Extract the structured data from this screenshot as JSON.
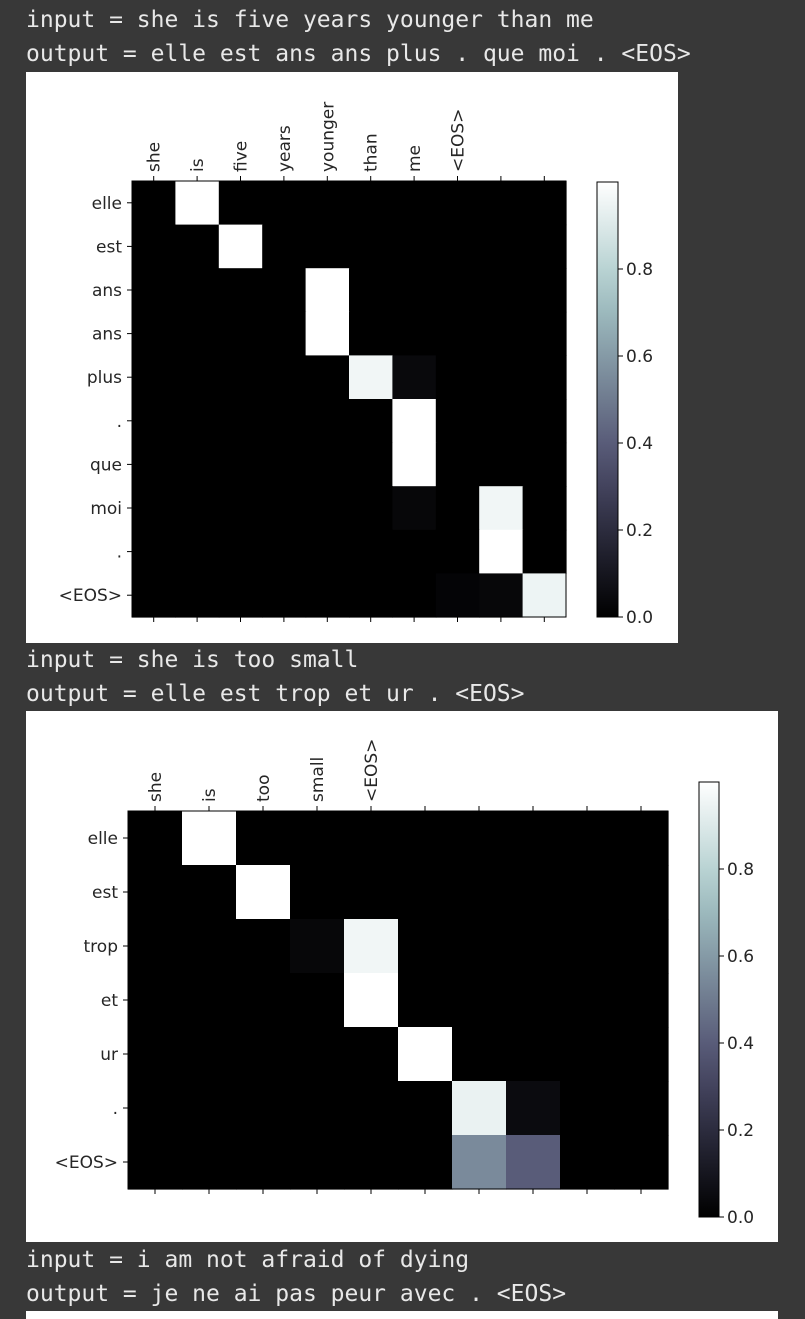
{
  "outputs": [
    {
      "input_line": "input = she is five years younger than me",
      "output_line": "output = elle est ans ans plus . que moi . <EOS>"
    },
    {
      "input_line": "input = she is too small",
      "output_line": "output = elle est trop et ur . <EOS>"
    },
    {
      "input_line": "input = i am not afraid of dying",
      "output_line": "output = je ne ai pas peur avec . <EOS>"
    }
  ],
  "chart_data": [
    {
      "type": "heatmap",
      "colormap": "bone",
      "x_tick_labels": [
        "she",
        "is",
        "five",
        "years",
        "younger",
        "than",
        "me",
        "<EOS>",
        "",
        ""
      ],
      "y_tick_labels": [
        "elle",
        "est",
        "ans",
        "ans",
        "plus",
        ".",
        "que",
        "moi",
        ".",
        "<EOS>"
      ],
      "colorbar": {
        "ticks": [
          0.0,
          0.2,
          0.4,
          0.6,
          0.8
        ],
        "tick_labels": [
          "0.0",
          "0.2",
          "0.4",
          "0.6",
          "0.8"
        ],
        "vmin": 0,
        "vmax": 1
      },
      "values": [
        [
          0,
          1,
          0,
          0,
          0,
          0,
          0,
          0,
          0,
          0
        ],
        [
          0,
          0,
          1,
          0,
          0,
          0,
          0,
          0,
          0,
          0
        ],
        [
          0,
          0,
          0,
          0,
          1,
          0,
          0,
          0,
          0,
          0
        ],
        [
          0,
          0,
          0,
          0,
          1,
          0,
          0,
          0,
          0,
          0
        ],
        [
          0,
          0,
          0,
          0,
          0,
          0.96,
          0.04,
          0,
          0,
          0
        ],
        [
          0,
          0,
          0,
          0,
          0,
          0,
          1,
          0,
          0,
          0
        ],
        [
          0,
          0,
          0,
          0,
          0,
          0,
          1,
          0,
          0,
          0
        ],
        [
          0,
          0,
          0,
          0,
          0,
          0,
          0.03,
          0,
          0.96,
          0
        ],
        [
          0,
          0,
          0,
          0,
          0,
          0,
          0,
          0,
          1,
          0
        ],
        [
          0,
          0,
          0,
          0,
          0,
          0,
          0,
          0.02,
          0.03,
          0.95
        ]
      ]
    },
    {
      "type": "heatmap",
      "colormap": "bone",
      "x_tick_labels": [
        "she",
        "is",
        "too",
        "small",
        "<EOS>",
        "",
        "",
        "",
        "",
        ""
      ],
      "y_tick_labels": [
        "elle",
        "est",
        "trop",
        "et",
        "ur",
        ".",
        "<EOS>"
      ],
      "colorbar": {
        "ticks": [
          0.0,
          0.2,
          0.4,
          0.6,
          0.8
        ],
        "tick_labels": [
          "0.0",
          "0.2",
          "0.4",
          "0.6",
          "0.8"
        ],
        "vmin": 0,
        "vmax": 1
      },
      "values": [
        [
          0,
          1,
          0,
          0,
          0,
          0,
          0,
          0,
          0,
          0
        ],
        [
          0,
          0,
          1,
          0,
          0,
          0,
          0,
          0,
          0,
          0
        ],
        [
          0,
          0,
          0,
          0.03,
          0.96,
          0,
          0,
          0,
          0,
          0
        ],
        [
          0,
          0,
          0,
          0,
          1,
          0,
          0,
          0,
          0,
          0
        ],
        [
          0,
          0,
          0,
          0,
          0,
          1,
          0,
          0,
          0,
          0
        ],
        [
          0,
          0,
          0,
          0,
          0,
          0,
          0.94,
          0.05,
          0,
          0
        ],
        [
          0,
          0,
          0,
          0,
          0,
          0,
          0.55,
          0.4,
          0,
          0
        ]
      ]
    }
  ]
}
